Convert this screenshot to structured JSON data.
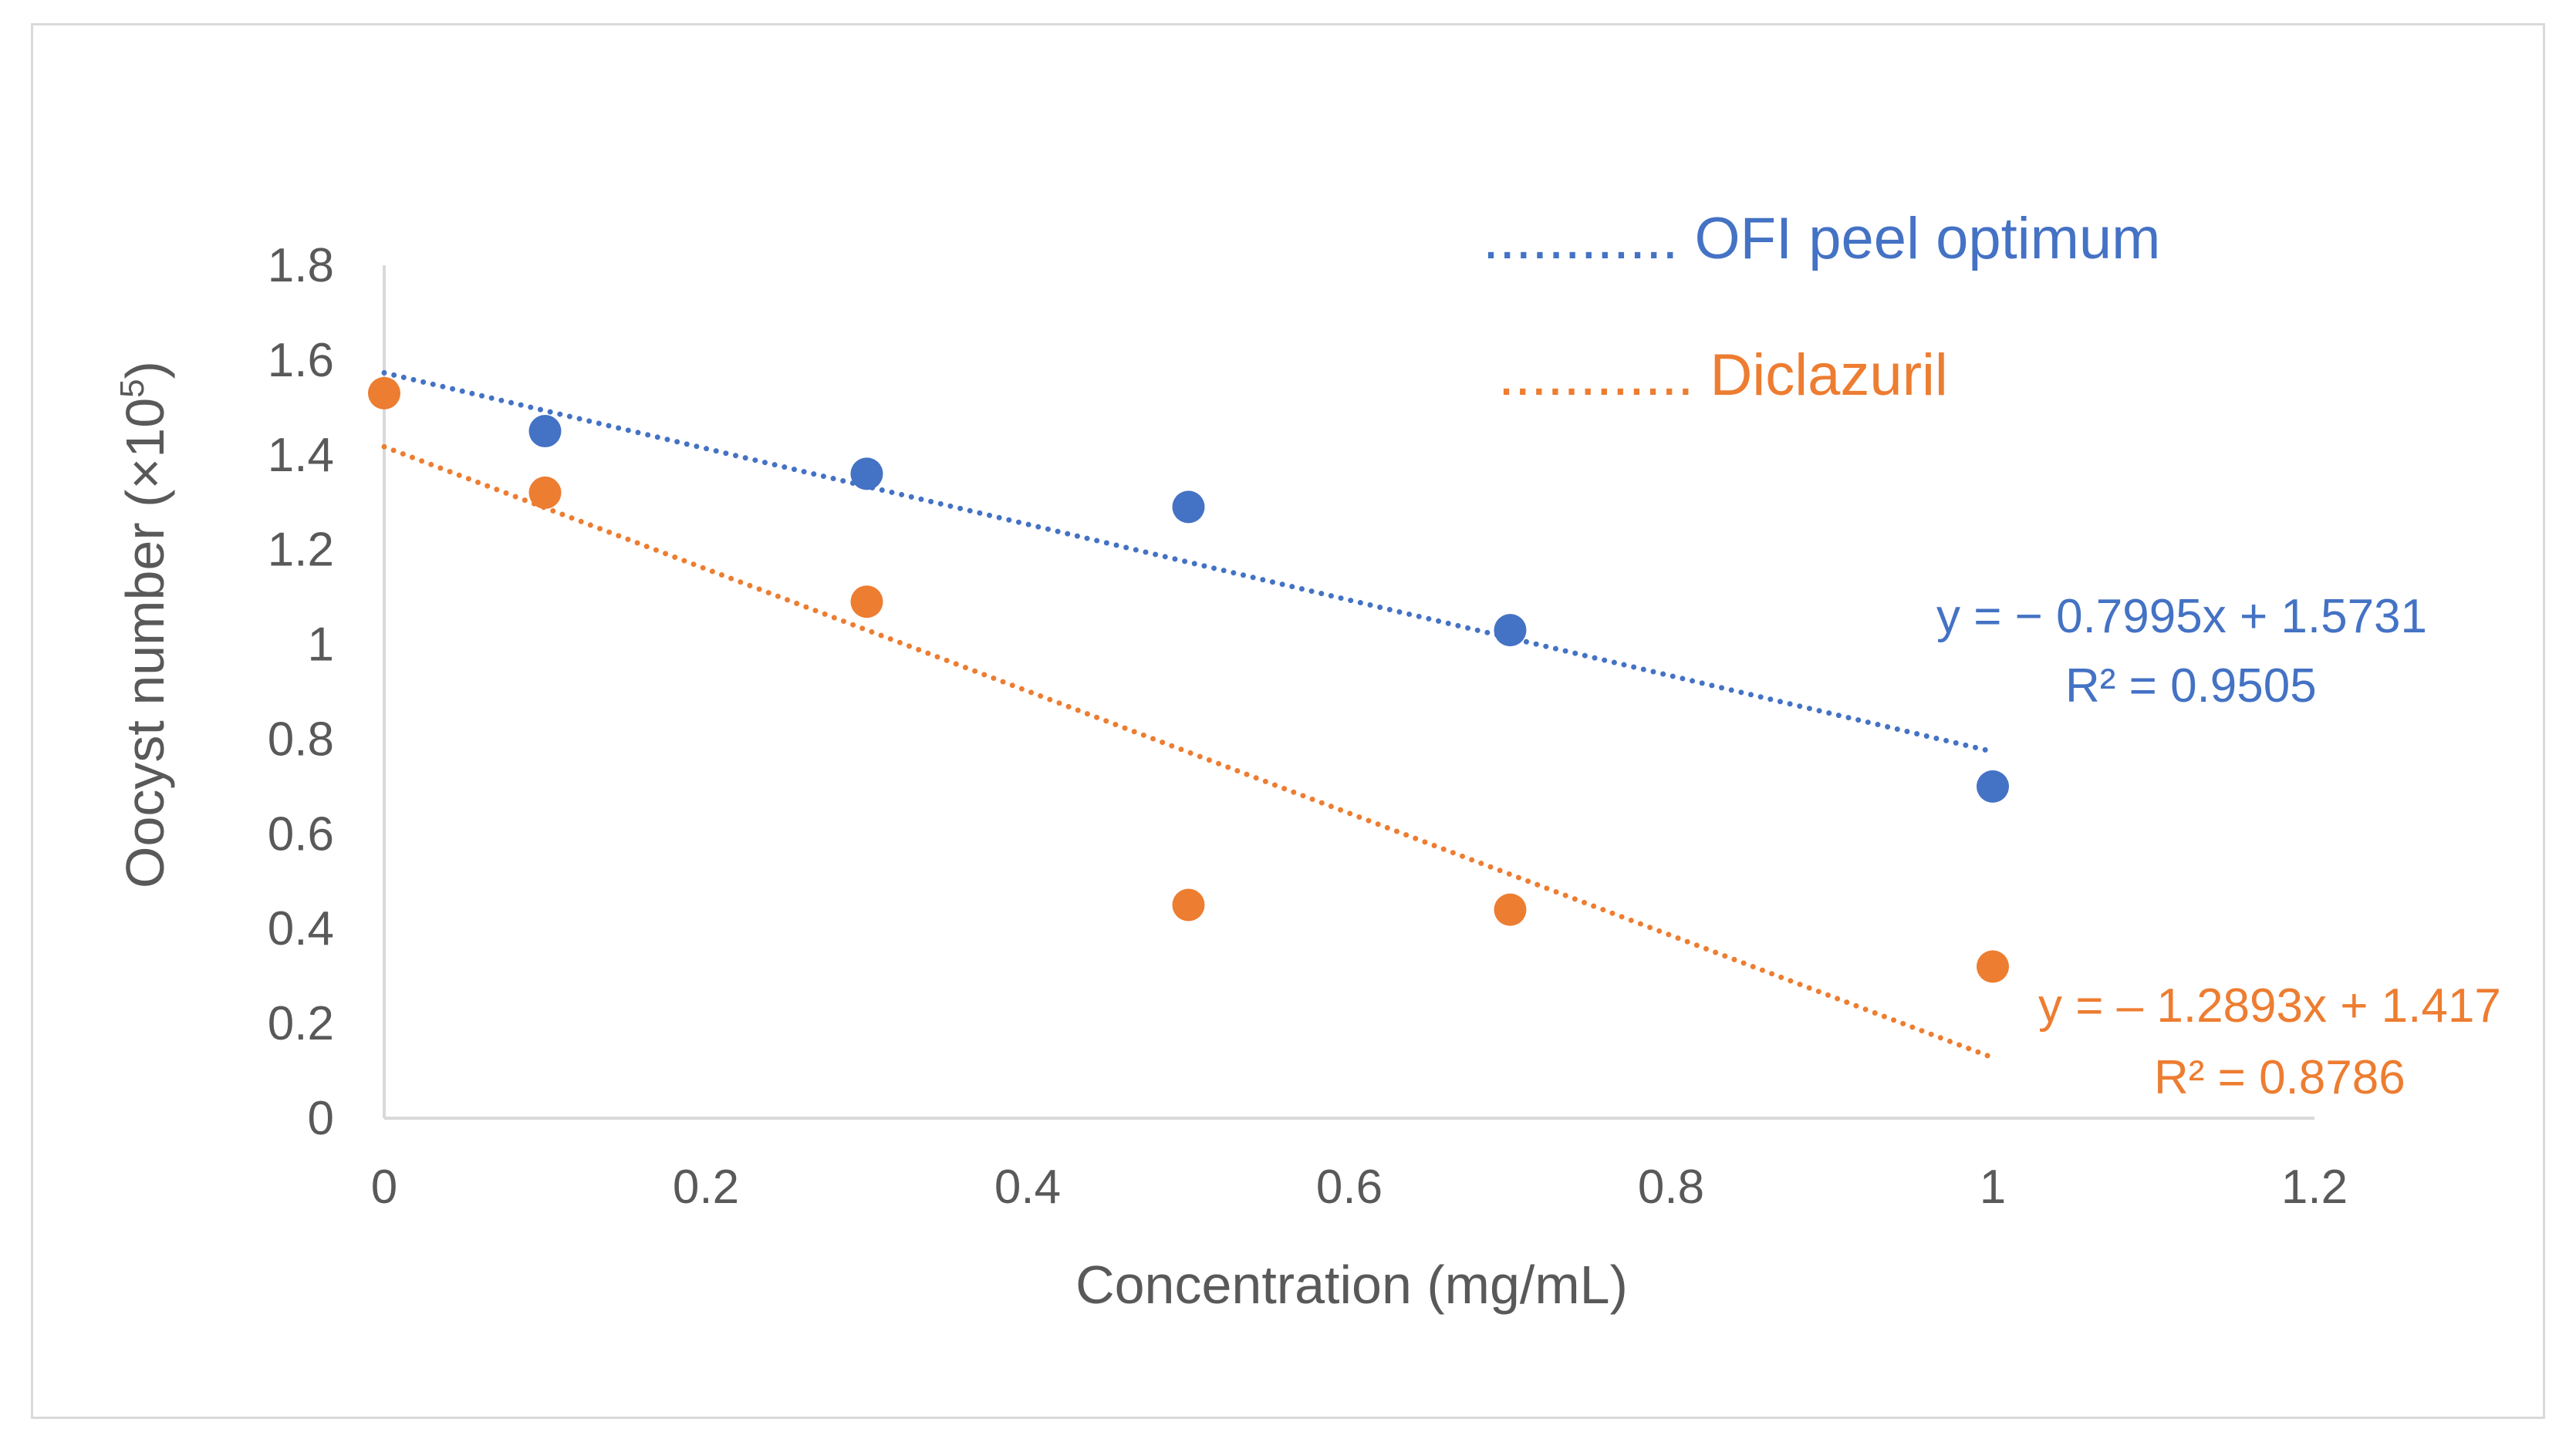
{
  "chart_data": {
    "type": "scatter",
    "xlabel": "Concentration (mg/mL)",
    "ylabel": "Oocyst number (×10",
    "ylabel_sup": "5",
    "ylabel_close": ")",
    "xlim": [
      0,
      1.2
    ],
    "ylim": [
      0,
      1.8
    ],
    "xticks": [
      "0",
      "0.2",
      "0.4",
      "0.6",
      "0.8",
      "1",
      "1.2"
    ],
    "yticks": [
      "0",
      "0.2",
      "0.4",
      "0.6",
      "0.8",
      "1",
      "1.2",
      "1.4",
      "1.6",
      "1.8"
    ],
    "xtick_values": [
      0,
      0.2,
      0.4,
      0.6,
      0.8,
      1.0,
      1.2
    ],
    "ytick_values": [
      0,
      0.2,
      0.4,
      0.6,
      0.8,
      1.0,
      1.2,
      1.4,
      1.6,
      1.8
    ],
    "series": [
      {
        "name": "OFI peel optimum",
        "legend_label": "............ OFI peel optimum",
        "color": "#4472c4",
        "x": [
          0.1,
          0.3,
          0.5,
          0.7,
          1.0
        ],
        "y": [
          1.45,
          1.36,
          1.29,
          1.03,
          0.7
        ],
        "trendline": {
          "slope": -0.7995,
          "intercept": 1.5731,
          "x_range": [
            0,
            1
          ]
        },
        "equation": "y = − 0.7995x + 1.5731",
        "r2": "R² = 0.9505"
      },
      {
        "name": "Diclazuril",
        "legend_label": "............ Diclazuril",
        "color": "#ed7d31",
        "x": [
          0,
          0.1,
          0.3,
          0.5,
          0.7,
          1.0
        ],
        "y": [
          1.53,
          1.32,
          1.09,
          0.45,
          0.44,
          0.32
        ],
        "trendline": {
          "slope": -1.2893,
          "intercept": 1.417,
          "x_range": [
            0,
            1
          ]
        },
        "equation": "y = – 1.2893x + 1.417",
        "r2": "R² = 0.8786"
      }
    ]
  }
}
